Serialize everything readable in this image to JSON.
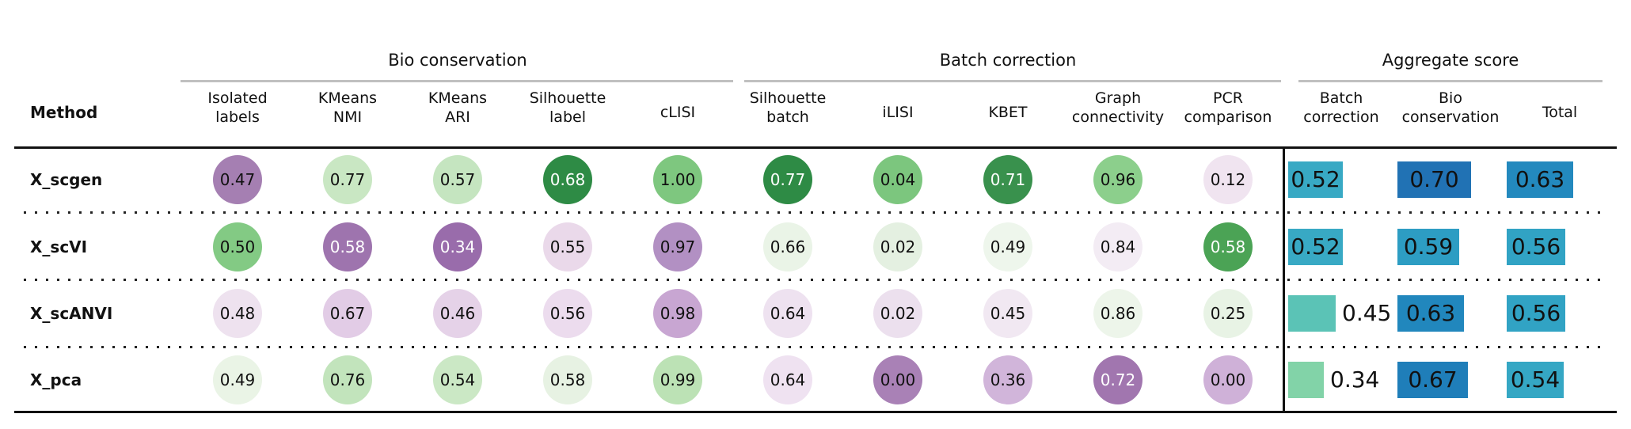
{
  "table": {
    "method_header": "Method",
    "groups": [
      {
        "label": "Bio conservation",
        "columns": [
          [
            "Isolated",
            "labels"
          ],
          [
            "KMeans",
            "NMI"
          ],
          [
            "KMeans",
            "ARI"
          ],
          [
            "Silhouette",
            "label"
          ],
          [
            "cLISI"
          ]
        ]
      },
      {
        "label": "Batch correction",
        "columns": [
          [
            "Silhouette",
            "batch"
          ],
          [
            "iLISI"
          ],
          [
            "KBET"
          ],
          [
            "Graph",
            "connectivity"
          ],
          [
            "PCR",
            "comparison"
          ]
        ]
      },
      {
        "label": "Aggregate score",
        "columns": [
          [
            "Batch",
            "correction"
          ],
          [
            "Bio",
            "conservation"
          ],
          [
            "Total"
          ]
        ]
      }
    ],
    "rows": [
      {
        "method": "X_scgen",
        "circles": [
          {
            "v": "0.47",
            "c": "#a57fb2",
            "t": "dark"
          },
          {
            "v": "0.77",
            "c": "#c9e7c3",
            "t": "dark"
          },
          {
            "v": "0.57",
            "c": "#c5e5c0",
            "t": "dark"
          },
          {
            "v": "0.68",
            "c": "#2e8b45",
            "t": "light"
          },
          {
            "v": "1.00",
            "c": "#7ec77f",
            "t": "dark"
          },
          {
            "v": "0.77",
            "c": "#2e8b45",
            "t": "light"
          },
          {
            "v": "0.04",
            "c": "#7cc67e",
            "t": "dark"
          },
          {
            "v": "0.71",
            "c": "#39914d",
            "t": "light"
          },
          {
            "v": "0.96",
            "c": "#8ccf8c",
            "t": "dark"
          },
          {
            "v": "0.12",
            "c": "#f0e4f0",
            "t": "dark"
          }
        ],
        "bars": [
          {
            "v": "0.52",
            "c": "#38a9c4"
          },
          {
            "v": "0.70",
            "c": "#2172b4"
          },
          {
            "v": "0.63",
            "c": "#2389be"
          }
        ]
      },
      {
        "method": "X_scVI",
        "circles": [
          {
            "v": "0.50",
            "c": "#83ca84",
            "t": "dark"
          },
          {
            "v": "0.58",
            "c": "#9e74ae",
            "t": "light"
          },
          {
            "v": "0.34",
            "c": "#996cab",
            "t": "light"
          },
          {
            "v": "0.55",
            "c": "#ead9ea",
            "t": "dark"
          },
          {
            "v": "0.97",
            "c": "#b290c3",
            "t": "dark"
          },
          {
            "v": "0.66",
            "c": "#eaf4e7",
            "t": "dark"
          },
          {
            "v": "0.02",
            "c": "#e4f0e1",
            "t": "dark"
          },
          {
            "v": "0.49",
            "c": "#eef6ec",
            "t": "dark"
          },
          {
            "v": "0.84",
            "c": "#f3ecf4",
            "t": "dark"
          },
          {
            "v": "0.58",
            "c": "#4ba355",
            "t": "light"
          }
        ],
        "bars": [
          {
            "v": "0.52",
            "c": "#38a9c4"
          },
          {
            "v": "0.59",
            "c": "#2d9dc3"
          },
          {
            "v": "0.56",
            "c": "#31a3c4"
          }
        ]
      },
      {
        "method": "X_scANVI",
        "circles": [
          {
            "v": "0.48",
            "c": "#eee2ef",
            "t": "dark"
          },
          {
            "v": "0.67",
            "c": "#e2cce6",
            "t": "dark"
          },
          {
            "v": "0.46",
            "c": "#e5d2e8",
            "t": "dark"
          },
          {
            "v": "0.56",
            "c": "#ecdcee",
            "t": "dark"
          },
          {
            "v": "0.98",
            "c": "#c8a6d2",
            "t": "dark"
          },
          {
            "v": "0.64",
            "c": "#eee2f0",
            "t": "dark"
          },
          {
            "v": "0.02",
            "c": "#ece0ee",
            "t": "dark"
          },
          {
            "v": "0.45",
            "c": "#f1e8f2",
            "t": "dark"
          },
          {
            "v": "0.86",
            "c": "#edf5ea",
            "t": "dark"
          },
          {
            "v": "0.25",
            "c": "#e8f3e5",
            "t": "dark"
          }
        ],
        "bars": [
          {
            "v": "0.45",
            "c": "#5bc3b6"
          },
          {
            "v": "0.63",
            "c": "#2187bd"
          },
          {
            "v": "0.56",
            "c": "#31a3c4"
          }
        ]
      },
      {
        "method": "X_pca",
        "circles": [
          {
            "v": "0.49",
            "c": "#eaf4e6",
            "t": "dark"
          },
          {
            "v": "0.76",
            "c": "#c2e4bc",
            "t": "dark"
          },
          {
            "v": "0.54",
            "c": "#cbe8c5",
            "t": "dark"
          },
          {
            "v": "0.58",
            "c": "#e7f2e3",
            "t": "dark"
          },
          {
            "v": "0.99",
            "c": "#bce2b5",
            "t": "dark"
          },
          {
            "v": "0.64",
            "c": "#efe2f1",
            "t": "dark"
          },
          {
            "v": "0.00",
            "c": "#a981b6",
            "t": "dark"
          },
          {
            "v": "0.36",
            "c": "#d1b5da",
            "t": "dark"
          },
          {
            "v": "0.72",
            "c": "#a176af",
            "t": "light"
          },
          {
            "v": "0.00",
            "c": "#cfb1d8",
            "t": "dark"
          }
        ],
        "bars": [
          {
            "v": "0.34",
            "c": "#82d3a8"
          },
          {
            "v": "0.67",
            "c": "#1f7eb9"
          },
          {
            "v": "0.54",
            "c": "#35a7c4"
          }
        ]
      }
    ]
  },
  "colors": {
    "text_dark": "#111111",
    "text_light": "#ffffff",
    "group_underline": "#c0c0c0",
    "rule_line": "#111111"
  },
  "chart_data": {
    "type": "table",
    "title": "",
    "row_label": "Method",
    "groups": [
      "Bio conservation",
      "Batch correction",
      "Aggregate score"
    ],
    "columns": [
      "Isolated labels",
      "KMeans NMI",
      "KMeans ARI",
      "Silhouette label",
      "cLISI",
      "Silhouette batch",
      "iLISI",
      "KBET",
      "Graph connectivity",
      "PCR comparison",
      "Batch correction",
      "Bio conservation",
      "Total"
    ],
    "value_range": [
      0,
      1
    ],
    "legend_position": "none",
    "rows": [
      {
        "method": "X_scgen",
        "values": [
          0.47,
          0.77,
          0.57,
          0.68,
          1.0,
          0.77,
          0.04,
          0.71,
          0.96,
          0.12,
          0.52,
          0.7,
          0.63
        ]
      },
      {
        "method": "X_scVI",
        "values": [
          0.5,
          0.58,
          0.34,
          0.55,
          0.97,
          0.66,
          0.02,
          0.49,
          0.84,
          0.58,
          0.52,
          0.59,
          0.56
        ]
      },
      {
        "method": "X_scANVI",
        "values": [
          0.48,
          0.67,
          0.46,
          0.56,
          0.98,
          0.64,
          0.02,
          0.45,
          0.86,
          0.25,
          0.45,
          0.63,
          0.56
        ]
      },
      {
        "method": "X_pca",
        "values": [
          0.49,
          0.76,
          0.54,
          0.58,
          0.99,
          0.64,
          0.0,
          0.36,
          0.72,
          0.0,
          0.34,
          0.67,
          0.54
        ]
      }
    ]
  }
}
